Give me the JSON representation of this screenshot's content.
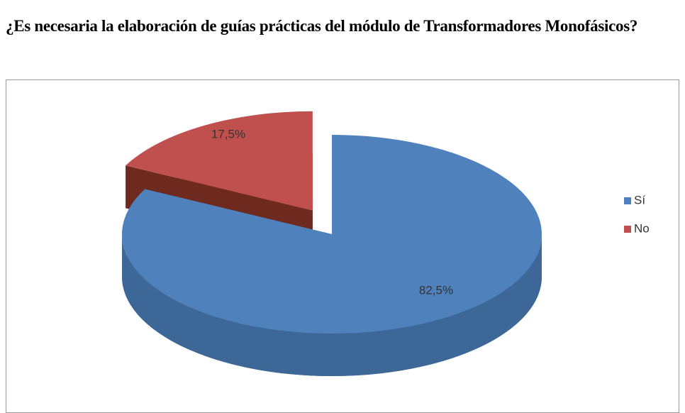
{
  "chart_data": {
    "type": "pie",
    "title": "¿Es necesaria la elaboración de guías prácticas del módulo de Transformadores Monofásicos?",
    "categories": [
      "Sí",
      "No"
    ],
    "values": [
      82.5,
      17.5
    ],
    "value_labels": [
      "82,5%",
      "17,5%"
    ],
    "colors": [
      "#4f81bd",
      "#c0504d"
    ],
    "side_colors": [
      "#3d6796",
      "#6e2a1e"
    ],
    "legend": "right"
  }
}
